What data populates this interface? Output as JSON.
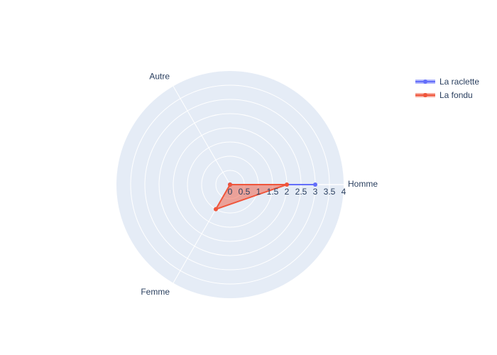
{
  "chart_data": {
    "type": "radar",
    "categories": [
      "Homme",
      "Femme",
      "Autre"
    ],
    "radial_range": [
      0,
      4
    ],
    "radial_ticks": [
      "0",
      "0.5",
      "1",
      "1.5",
      "2",
      "2.5",
      "3",
      "3.5",
      "4"
    ],
    "series": [
      {
        "name": "La raclette",
        "values": [
          3,
          0,
          0
        ],
        "color": "#636efa",
        "fill_color": "rgba(99,110,250,0.5)"
      },
      {
        "name": "La fondu",
        "values": [
          2,
          1,
          0
        ],
        "color": "#ef553b",
        "fill_color": "rgba(239,85,59,0.5)"
      }
    ],
    "grid": true,
    "legend_position": "top-right",
    "background_color": "#e5ecf6"
  }
}
